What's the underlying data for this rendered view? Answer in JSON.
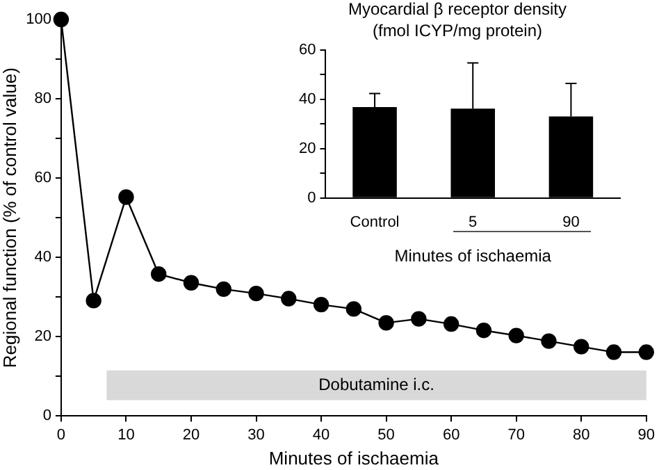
{
  "chart_data": [
    {
      "type": "line",
      "xlabel": "Minutes of ischaemia",
      "ylabel": "Regional function (% of control value)",
      "x": [
        0,
        5,
        10,
        15,
        20,
        25,
        30,
        35,
        40,
        45,
        50,
        55,
        60,
        65,
        70,
        75,
        80,
        85,
        90
      ],
      "series": [
        {
          "color": "#000000",
          "values": [
            100,
            29.1,
            55.2,
            35.8,
            33.6,
            32,
            30.9,
            29.6,
            28.1,
            27,
            23.5,
            24.5,
            23.2,
            21.6,
            20.3,
            18.9,
            17.5,
            16.1,
            16.1
          ]
        }
      ],
      "marker": "circle",
      "line_style": "solid",
      "grid": false,
      "legend": false,
      "xlim": [
        0,
        90
      ],
      "xticks": [
        0,
        10,
        20,
        30,
        40,
        50,
        60,
        70,
        80,
        90
      ],
      "ylim": [
        0,
        100
      ],
      "yticks": [
        0,
        {
          "value": 10,
          "label": null
        },
        20,
        {
          "value": 30,
          "label": null
        },
        40,
        {
          "value": 50,
          "label": null
        },
        60,
        {
          "value": 70,
          "label": null
        },
        80,
        {
          "value": 90,
          "label": null
        },
        100
      ],
      "bands": [
        {
          "axis": "x",
          "from": 7,
          "to": 90,
          "label": "Dobutamine i.c.",
          "color": "#d9d9d9"
        }
      ]
    },
    {
      "type": "bar",
      "title": "Myocardial β receptor density",
      "subtitle": "(fmol ICYP/mg protein)",
      "xlabel": "Minutes of ischaemia",
      "categories": [
        "Control",
        "5",
        "90"
      ],
      "values": [
        36.8,
        36.2,
        33
      ],
      "errors": [
        [
          36.8,
          42.3
        ],
        [
          36.2,
          54.7
        ],
        [
          33,
          46.4
        ]
      ],
      "color": "#000000",
      "grid": false,
      "legend": false,
      "ylim": [
        0,
        60
      ],
      "yticks": [
        0,
        {
          "value": 10,
          "label": null
        },
        20,
        {
          "value": 30,
          "label": null
        },
        40,
        {
          "value": 50,
          "label": null
        },
        60
      ]
    }
  ]
}
